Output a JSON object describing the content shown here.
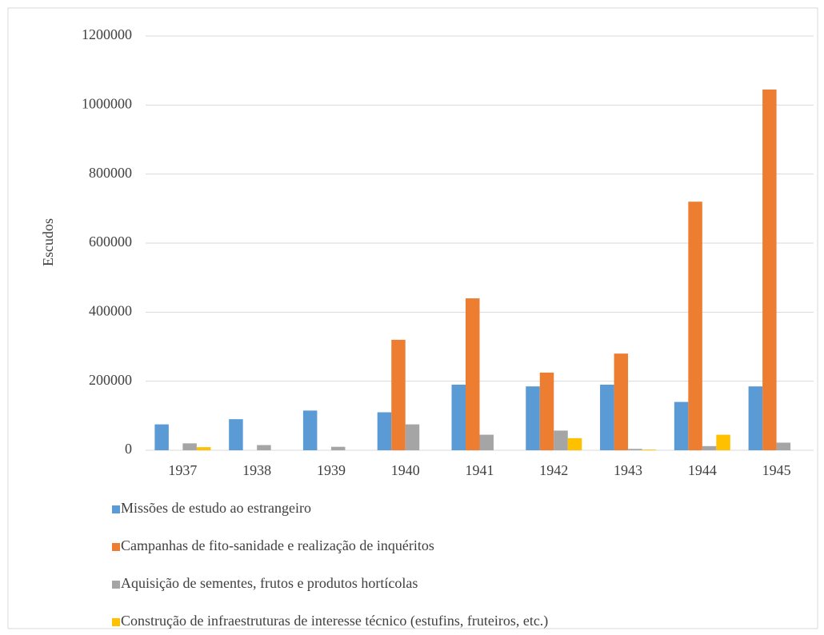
{
  "chart_data": {
    "type": "bar",
    "y_label": "Escudos",
    "categories": [
      "1937",
      "1938",
      "1939",
      "1940",
      "1941",
      "1942",
      "1943",
      "1944",
      "1945"
    ],
    "series": [
      {
        "name": "Missões de estudo ao estrangeiro",
        "color": "#5b9bd5",
        "values": [
          75000,
          90000,
          115000,
          110000,
          190000,
          185000,
          190000,
          140000,
          185000
        ]
      },
      {
        "name": "Campanhas de fito-sanidade e realização de inquéritos",
        "color": "#ed7d31",
        "values": [
          0,
          0,
          0,
          320000,
          440000,
          225000,
          280000,
          720000,
          1045000
        ]
      },
      {
        "name": "Aquisição de sementes, frutos e produtos hortícolas",
        "color": "#a5a5a5",
        "values": [
          20000,
          15000,
          10000,
          75000,
          45000,
          57000,
          4000,
          12000,
          22000
        ]
      },
      {
        "name": "Construção de infraestruturas de interesse técnico (estufins, fruteiros, etc.)",
        "color": "#ffc000",
        "values": [
          9000,
          0,
          0,
          0,
          0,
          35000,
          2000,
          45000,
          0
        ]
      }
    ],
    "ylim": [
      0,
      1200000
    ],
    "yticks": [
      0,
      200000,
      400000,
      600000,
      800000,
      1000000,
      1200000
    ],
    "grid": true,
    "legend": "bottom"
  }
}
